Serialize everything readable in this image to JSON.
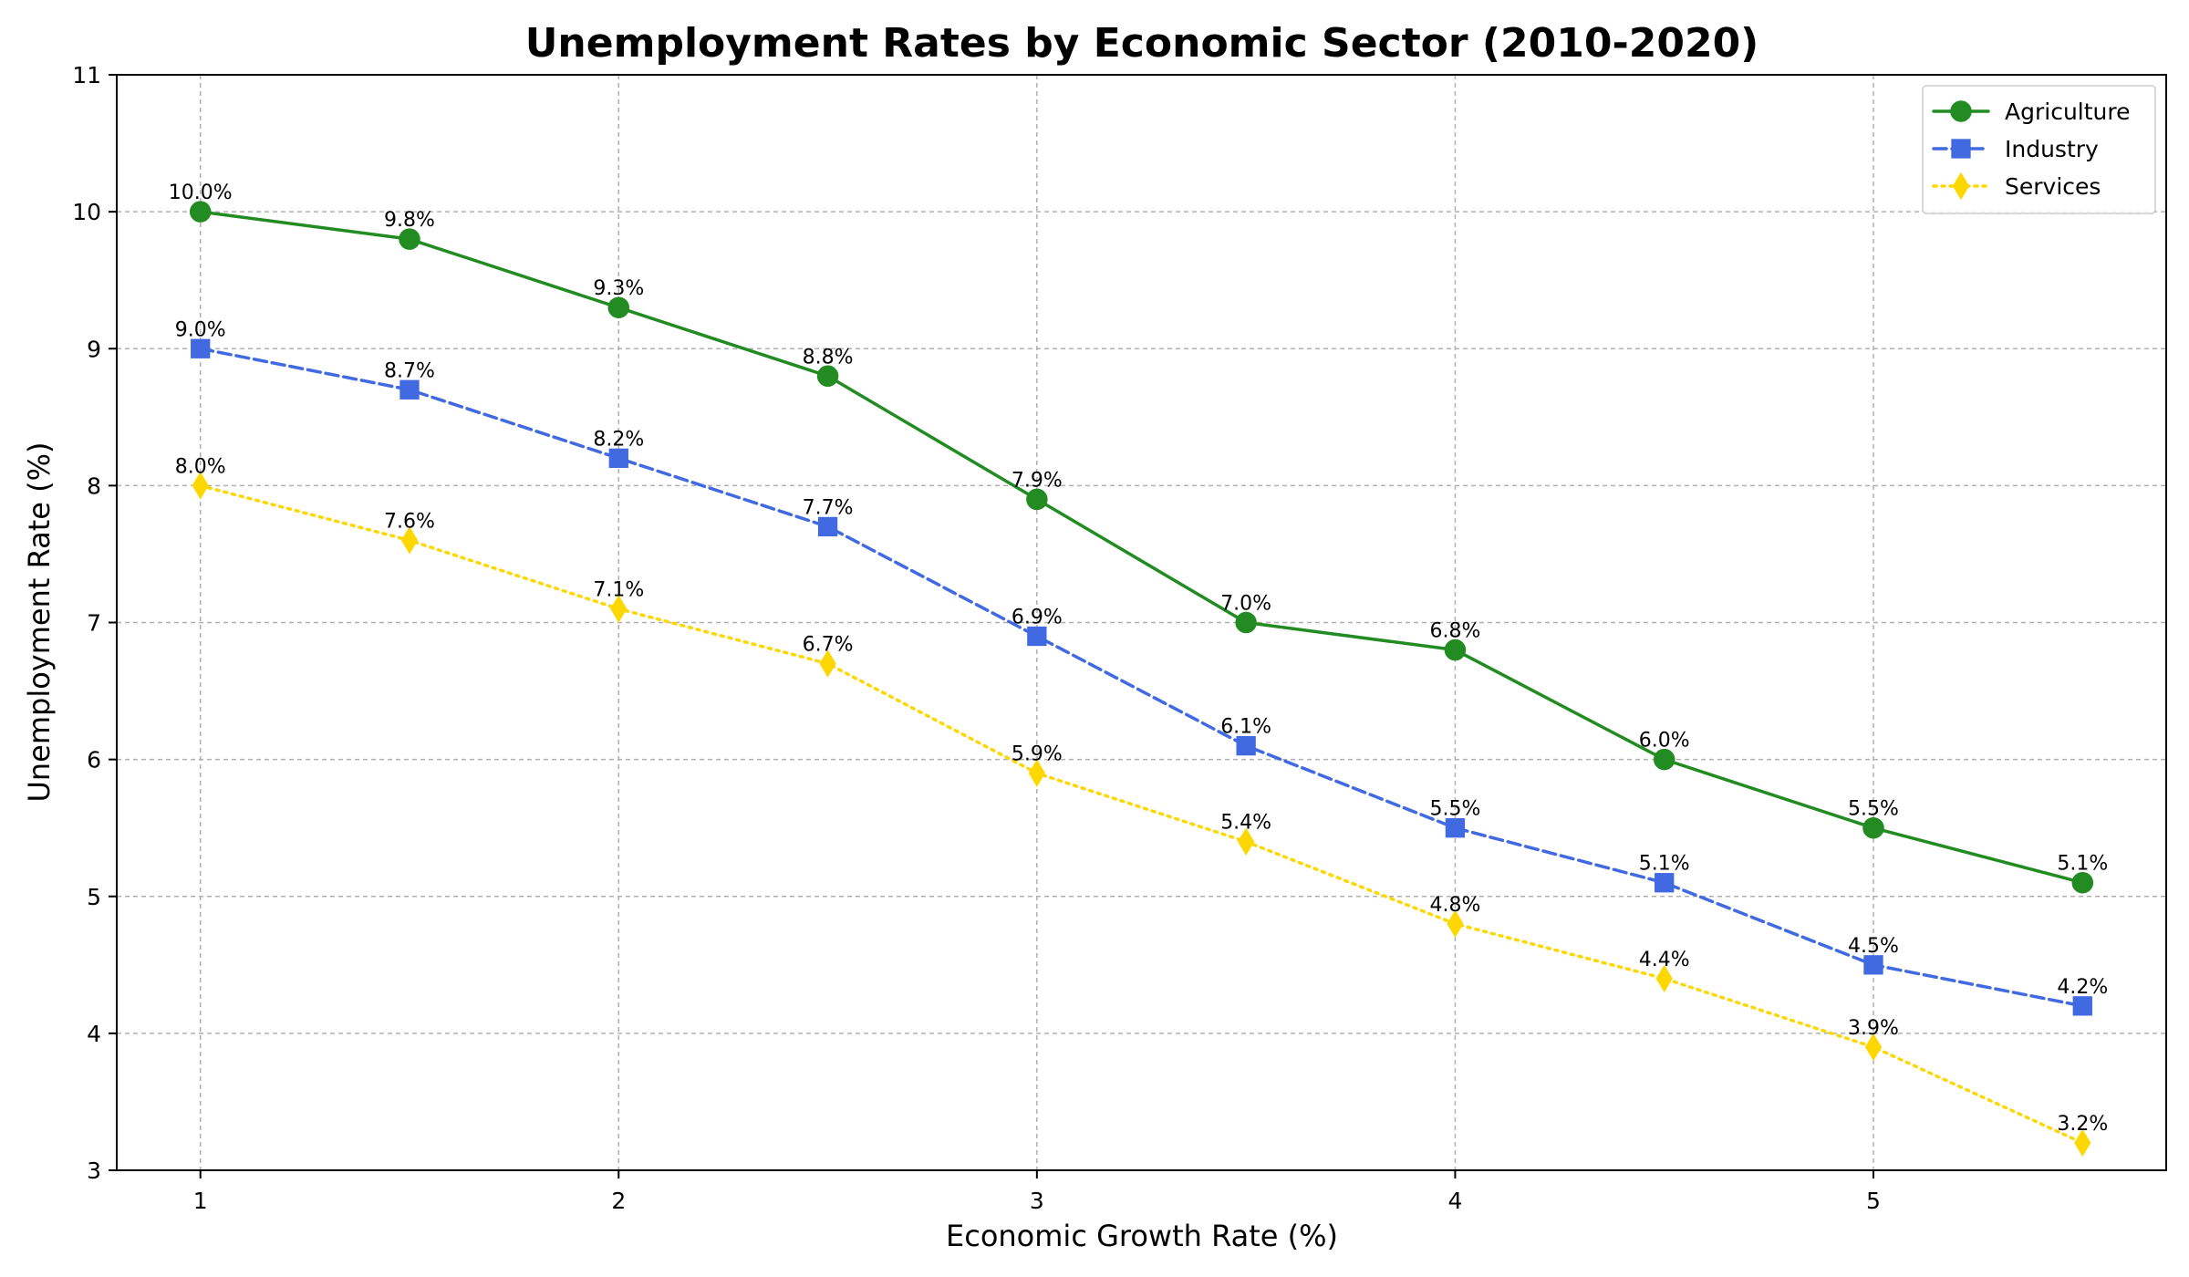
{
  "chart_data": {
    "type": "line",
    "title": "Unemployment Rates by Economic Sector (2010-2020)",
    "xlabel": "Economic Growth Rate (%)",
    "ylabel": "Unemployment Rate (%)",
    "x": [
      1,
      1.5,
      2,
      2.5,
      3,
      3.5,
      4,
      4.5,
      5,
      5.5
    ],
    "xlim": [
      0.8,
      5.7
    ],
    "ylim": [
      3,
      11
    ],
    "xticks": [
      1,
      2,
      3,
      4,
      5
    ],
    "xtick_labels": [
      "1",
      "2",
      "3",
      "4",
      "5"
    ],
    "yticks": [
      3,
      4,
      5,
      6,
      7,
      8,
      9,
      10,
      11
    ],
    "ytick_labels": [
      "3",
      "4",
      "5",
      "6",
      "7",
      "8",
      "9",
      "10",
      "11"
    ],
    "grid": true,
    "legend_position": "top-right",
    "series": [
      {
        "name": "Agriculture",
        "color": "#228B22",
        "marker": "circle",
        "line_style": "solid",
        "values": [
          10.0,
          9.8,
          9.3,
          8.8,
          7.9,
          7.0,
          6.8,
          6.0,
          5.5,
          5.1
        ],
        "labels": [
          "10.0%",
          "9.8%",
          "9.3%",
          "8.8%",
          "7.9%",
          "7.0%",
          "6.8%",
          "6.0%",
          "5.5%",
          "5.1%"
        ]
      },
      {
        "name": "Industry",
        "color": "#4169E1",
        "marker": "square",
        "line_style": "dashed",
        "values": [
          9.0,
          8.7,
          8.2,
          7.7,
          6.9,
          6.1,
          5.5,
          5.1,
          4.5,
          4.2
        ],
        "labels": [
          "9.0%",
          "8.7%",
          "8.2%",
          "7.7%",
          "6.9%",
          "6.1%",
          "5.5%",
          "5.1%",
          "4.5%",
          "4.2%"
        ]
      },
      {
        "name": "Services",
        "color": "#FFD700",
        "marker": "diamond",
        "line_style": "dotted",
        "values": [
          8.0,
          7.6,
          7.1,
          6.7,
          5.9,
          5.4,
          4.8,
          4.4,
          3.9,
          3.2
        ],
        "labels": [
          "8.0%",
          "7.6%",
          "7.1%",
          "6.7%",
          "5.9%",
          "5.4%",
          "4.8%",
          "4.4%",
          "3.9%",
          "3.2%"
        ]
      }
    ]
  }
}
